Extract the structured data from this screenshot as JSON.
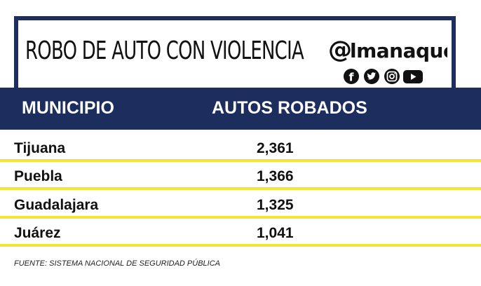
{
  "title": "ROBO DE AUTO CON VIOLENCIA",
  "brand": {
    "at_glyph": "@",
    "name_rest": "lmanaque",
    "social_icons": [
      "facebook-icon",
      "twitter-icon",
      "instagram-icon",
      "youtube-icon"
    ],
    "facebook_glyph": "f"
  },
  "colors": {
    "header_band": "#1c2d5e",
    "divider": "#f1e536",
    "header_text": "#ffffff",
    "body_text": "#111111"
  },
  "chart_data": {
    "type": "table",
    "title": "ROBO DE AUTO CON VIOLENCIA",
    "columns": [
      "MUNICIPIO",
      "AUTOS ROBADOS"
    ],
    "rows": [
      {
        "municipio": "Tijuana",
        "autos_robados": "2,361"
      },
      {
        "municipio": "Puebla",
        "autos_robados": "1,366"
      },
      {
        "municipio": "Guadalajara",
        "autos_robados": "1,325"
      },
      {
        "municipio": "Juárez",
        "autos_robados": "1,041"
      }
    ],
    "source": "FUENTE: SISTEMA NACIONAL DE SEGURIDAD PÚBLICA"
  }
}
